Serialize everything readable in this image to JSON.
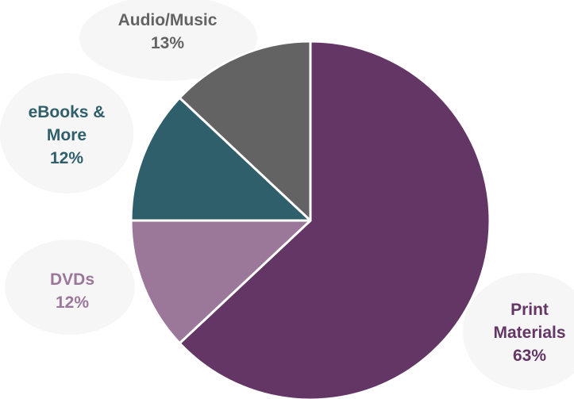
{
  "chart_data": {
    "type": "pie",
    "title": "",
    "categories": [
      "Print Materials",
      "DVDs",
      "eBooks & More",
      "Audio/Music"
    ],
    "values": [
      63,
      12,
      12,
      13
    ],
    "labels": [
      {
        "name_lines": [
          "Print",
          "Materials"
        ],
        "pct_text": "63%"
      },
      {
        "name_lines": [
          "DVDs"
        ],
        "pct_text": "12%"
      },
      {
        "name_lines": [
          "eBooks &",
          "More"
        ],
        "pct_text": "12%"
      },
      {
        "name_lines": [
          "Audio/Music"
        ],
        "pct_text": "13%"
      }
    ],
    "colors": [
      "#633665",
      "#9b7799",
      "#2e5f6b",
      "#636363"
    ],
    "label_colors": [
      "#633665",
      "#9b7799",
      "#2e5f6b",
      "#636363"
    ],
    "start": "12 o'clock",
    "direction": "clockwise",
    "legend": "none"
  }
}
